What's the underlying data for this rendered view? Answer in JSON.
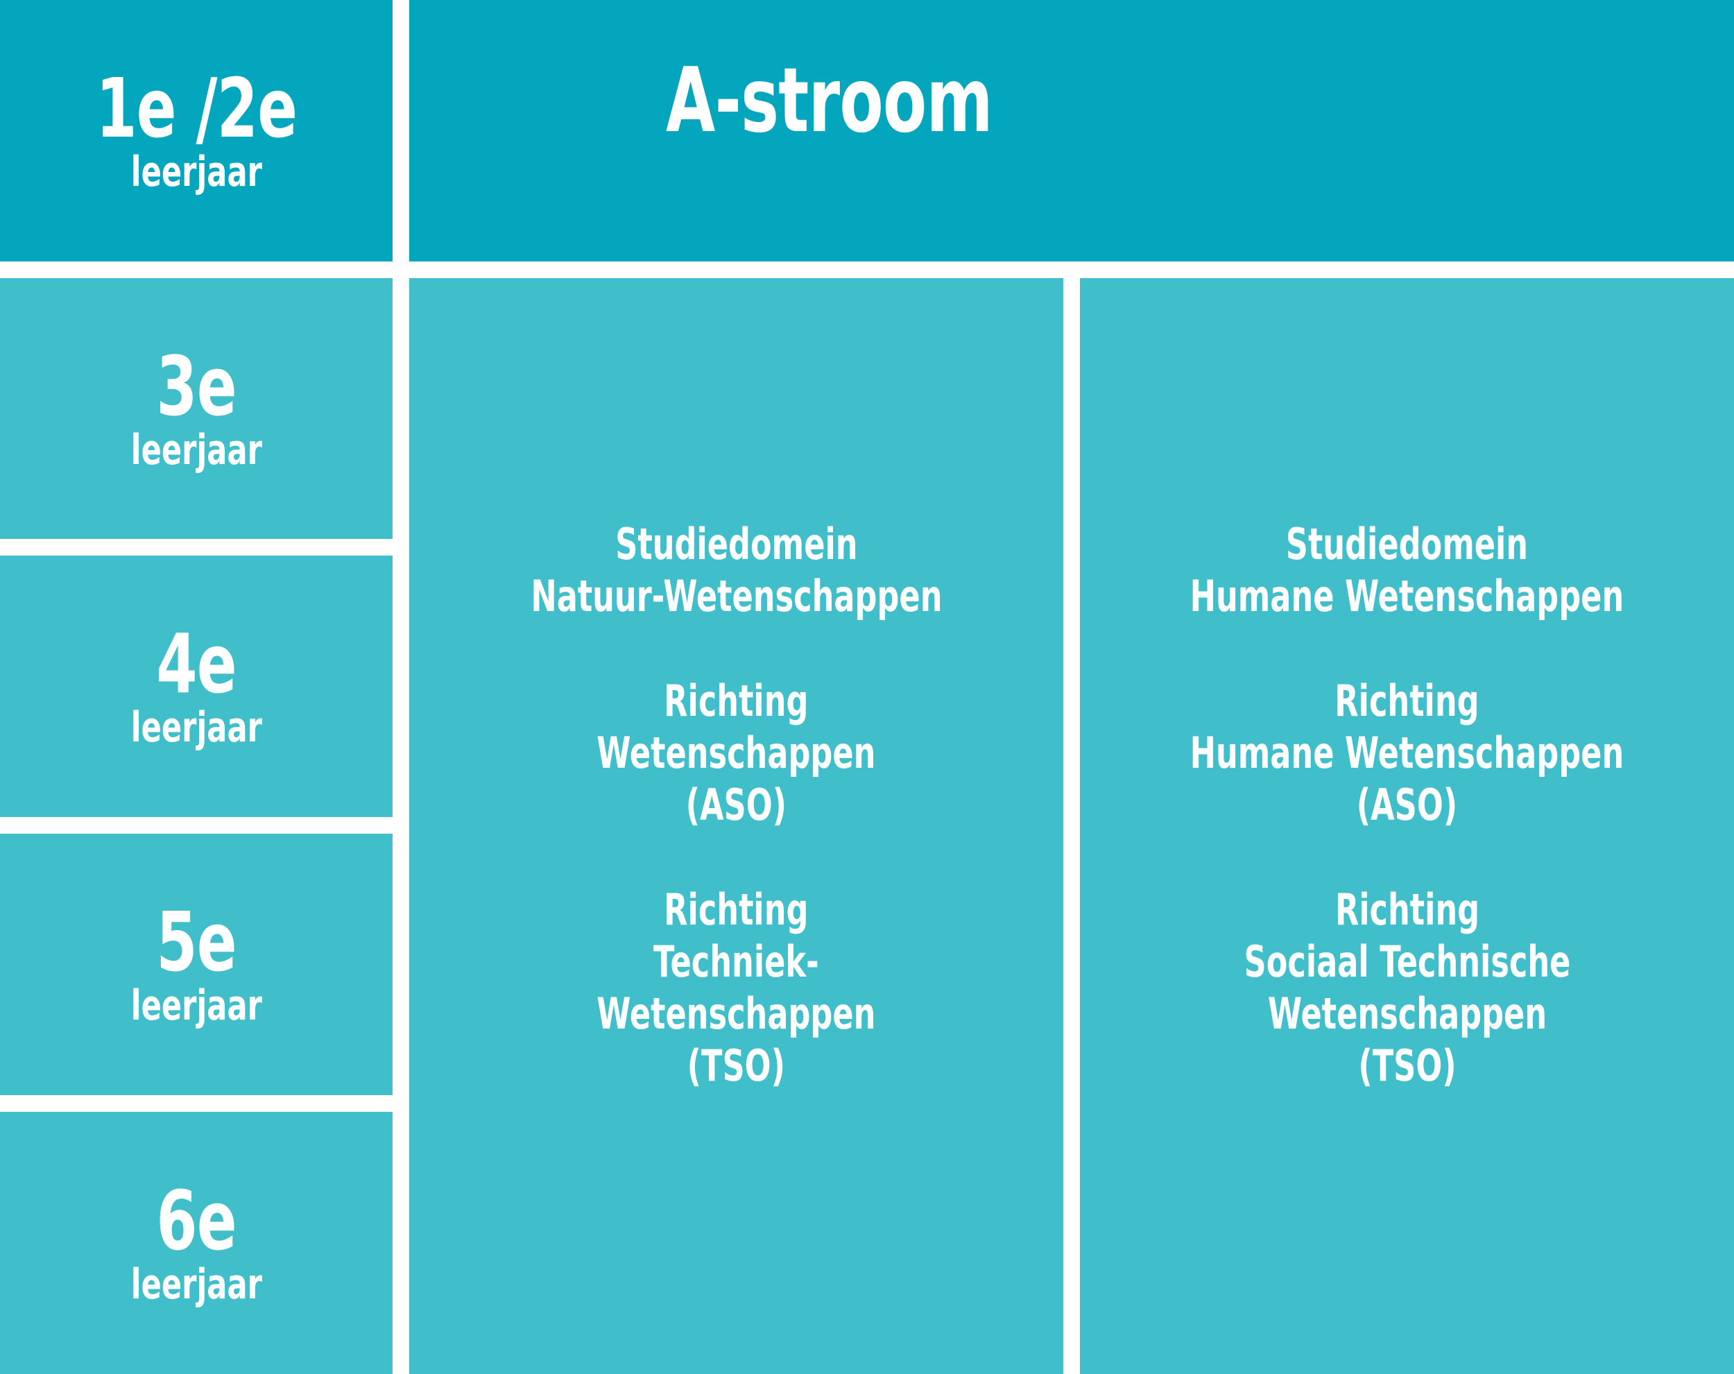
{
  "colors": {
    "header_bg": "#03a6bc",
    "cell_bg": "#40bec9",
    "divider": "#ffffff",
    "text": "#ffffff"
  },
  "years": [
    {
      "number": "1e /2e",
      "label": "leerjaar"
    },
    {
      "number": "3e",
      "label": "leerjaar"
    },
    {
      "number": "4e",
      "label": "leerjaar"
    },
    {
      "number": "5e",
      "label": "leerjaar"
    },
    {
      "number": "6e",
      "label": "leerjaar"
    }
  ],
  "stream": {
    "title": "A-stroom"
  },
  "columns": [
    {
      "blocks": [
        [
          "Studiedomein",
          "Natuur-Wetenschappen"
        ],
        [
          "Richting",
          "Wetenschappen",
          "(ASO)"
        ],
        [
          "Richting",
          "Techniek-",
          "Wetenschappen",
          "(TSO)"
        ]
      ]
    },
    {
      "blocks": [
        [
          "Studiedomein",
          "Humane Wetenschappen"
        ],
        [
          "Richting",
          "Humane Wetenschappen",
          "(ASO)"
        ],
        [
          "Richting",
          "Sociaal Technische",
          "Wetenschappen",
          "(TSO)"
        ]
      ]
    }
  ]
}
